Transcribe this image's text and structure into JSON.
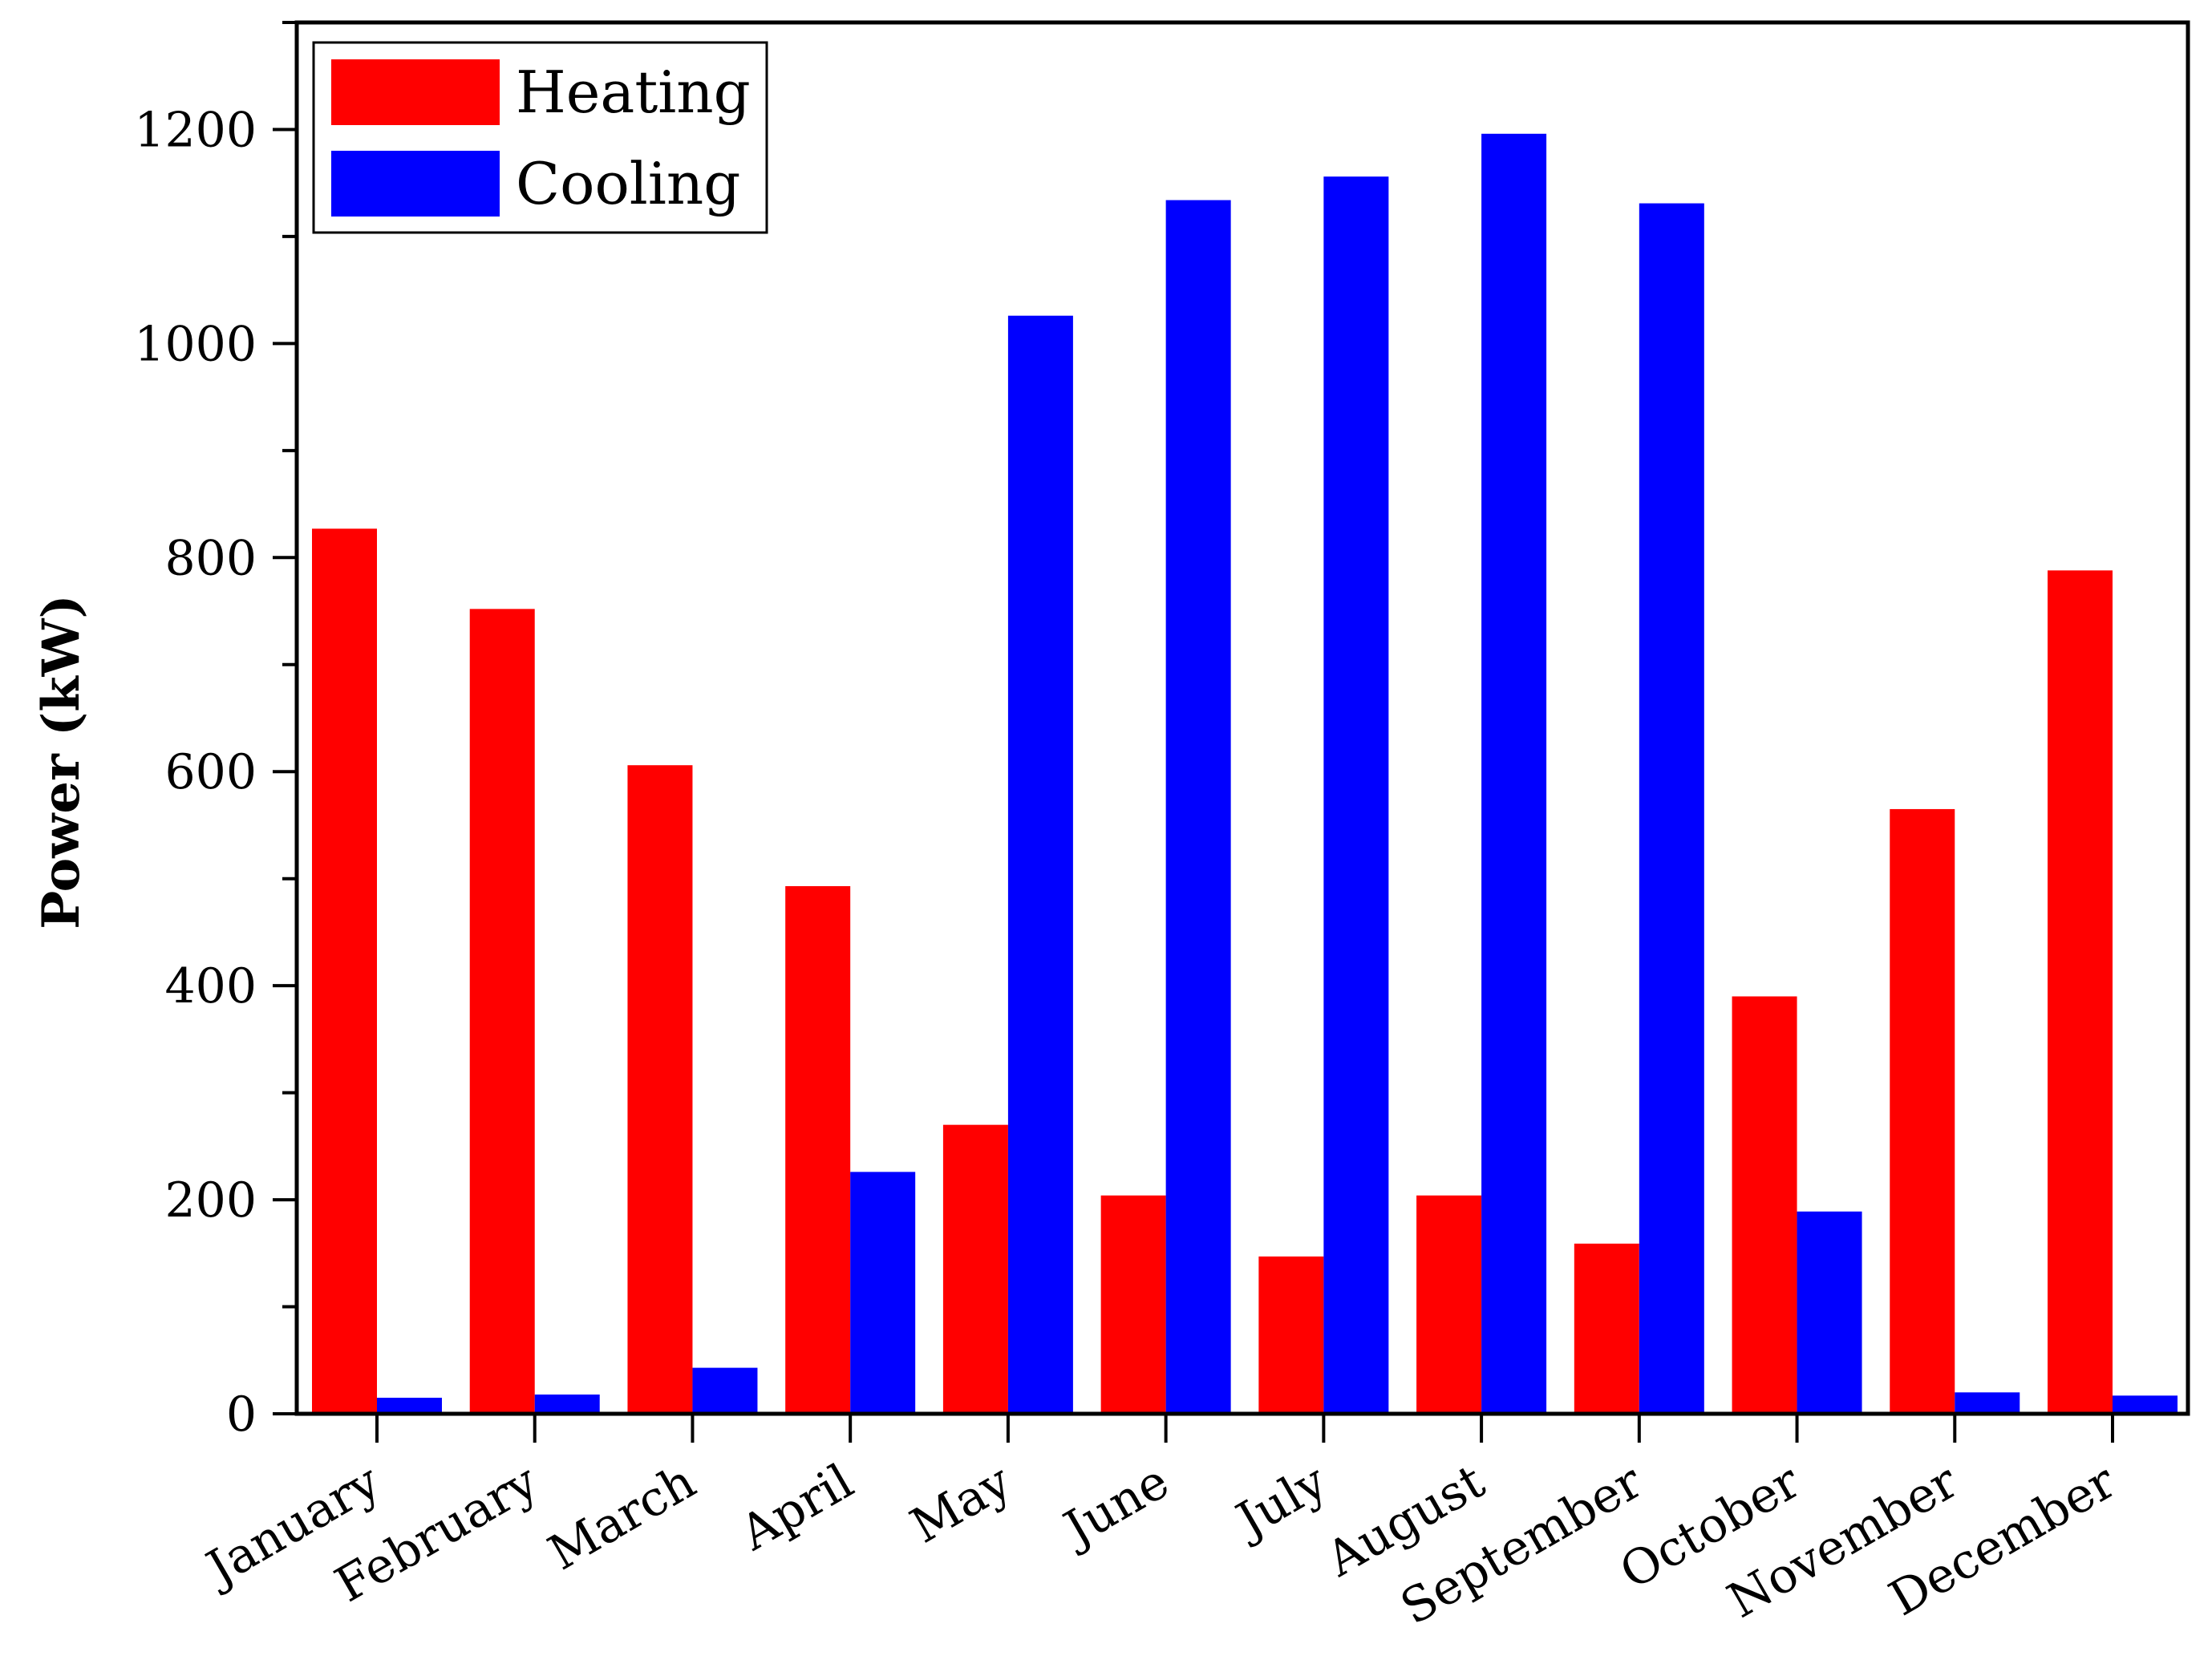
{
  "chart_data": {
    "type": "bar",
    "title": "",
    "xlabel": "",
    "ylabel": "Power (kW)",
    "ylim": [
      0,
      1300
    ],
    "yticks": [
      0,
      200,
      400,
      600,
      800,
      1000,
      1200
    ],
    "categories": [
      "January",
      "February",
      "March",
      "April",
      "May",
      "June",
      "July",
      "August",
      "September",
      "October",
      "November",
      "December"
    ],
    "series": [
      {
        "name": "Heating",
        "color": "#ff0000",
        "values": [
          827,
          752,
          606,
          493,
          270,
          204,
          147,
          204,
          159,
          390,
          565,
          788
        ]
      },
      {
        "name": "Cooling",
        "color": "#0000ff",
        "values": [
          15,
          18,
          43,
          226,
          1026,
          1134,
          1156,
          1196,
          1131,
          189,
          20,
          17
        ]
      }
    ],
    "legend_position": "top-left",
    "grid": false
  }
}
